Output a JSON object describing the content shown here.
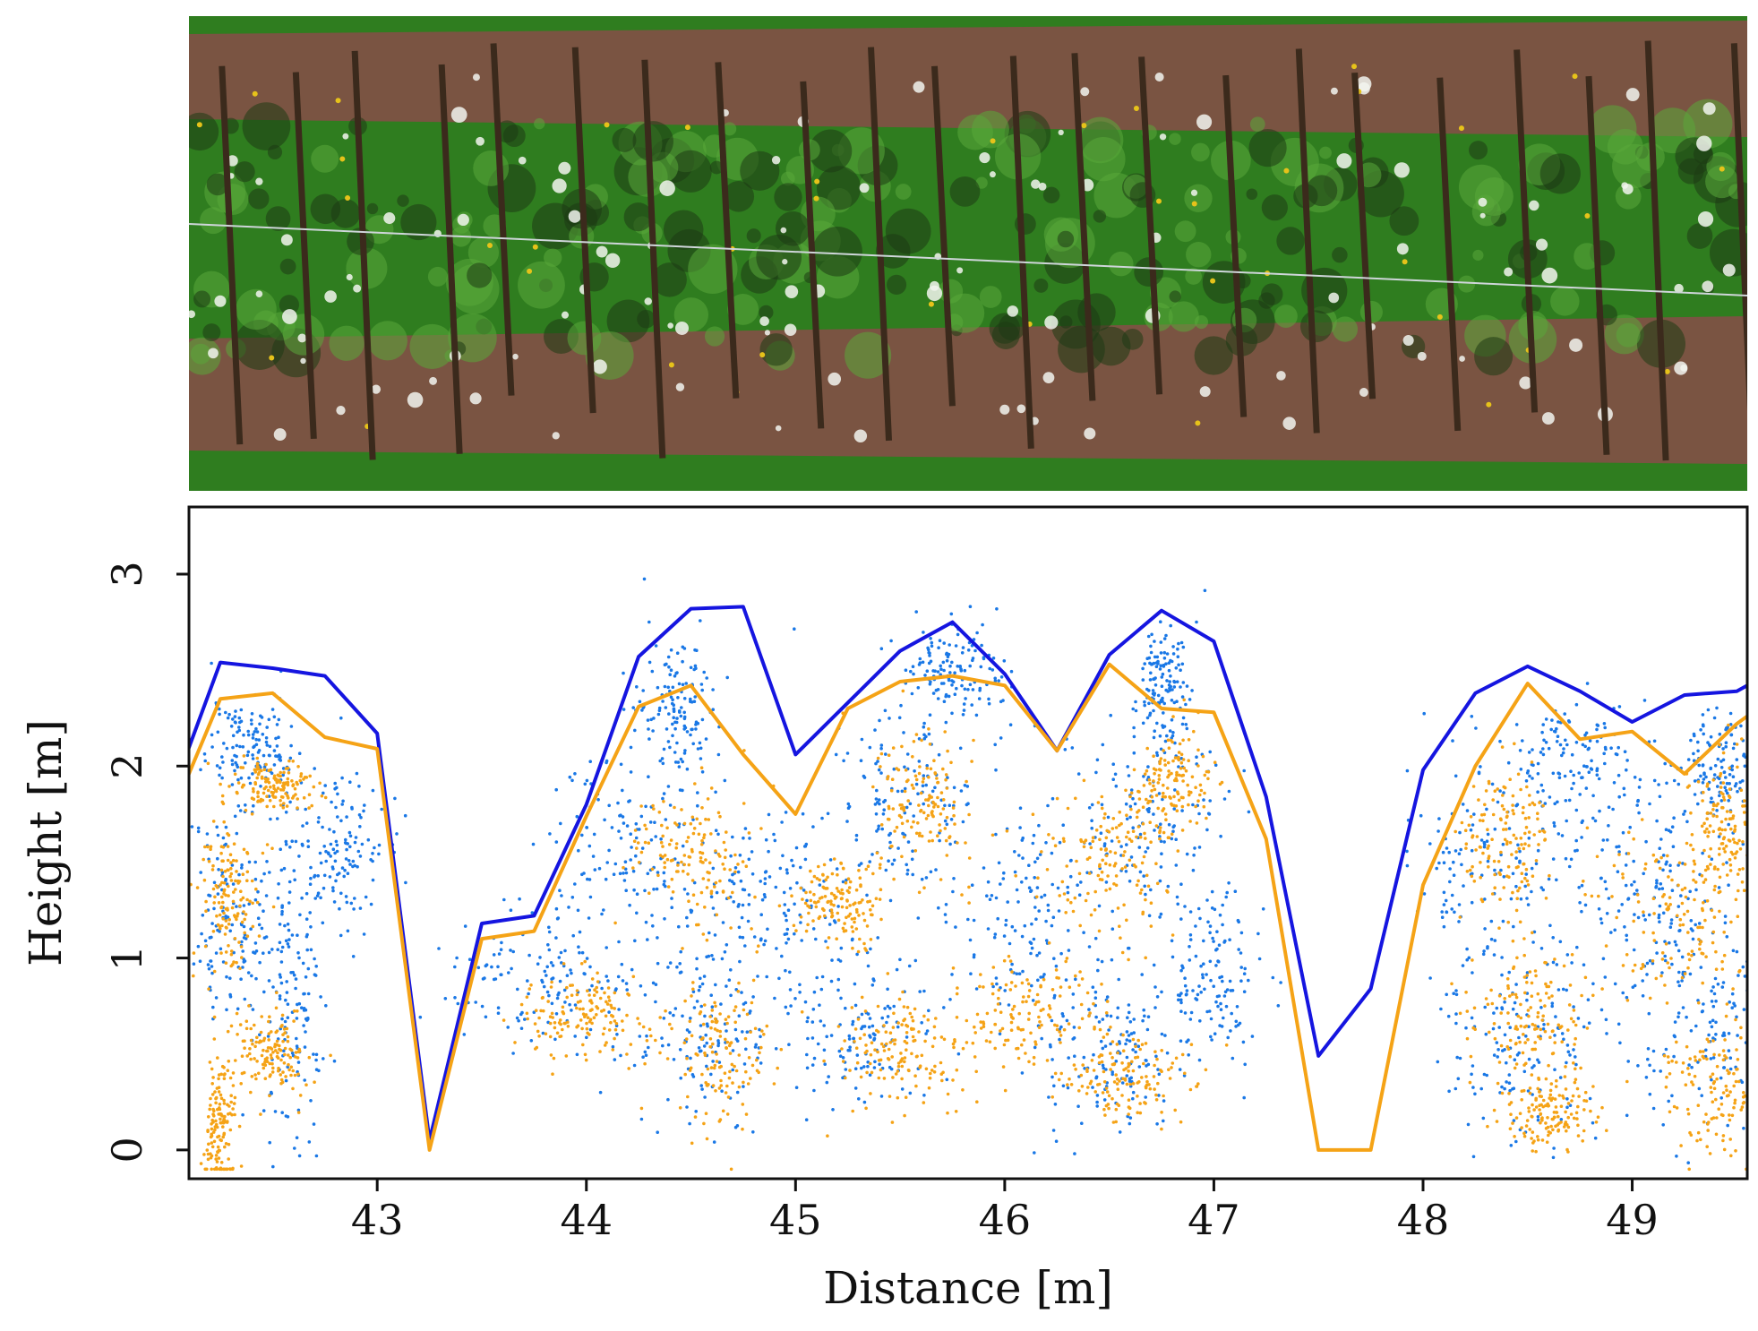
{
  "photo": {
    "subject": "orchard-row-photo",
    "colors": {
      "grass": "#2f7d1f",
      "soil": "#7a5442",
      "leaf": "#5aa83a",
      "blossom": "#f2f4ef",
      "trunk": "#3b2a1c",
      "shadow": "#1d3a14",
      "dandelion": "#e6c21a"
    }
  },
  "chart_data": {
    "type": "scatter",
    "xlabel": "Distance [m]",
    "ylabel": "Height [m]",
    "xlim": [
      42.1,
      49.55
    ],
    "ylim": [
      -0.15,
      3.35
    ],
    "xticks": [
      43,
      44,
      45,
      46,
      47,
      48,
      49
    ],
    "xtick_labels": [
      "43",
      "44",
      "45",
      "46",
      "47",
      "48",
      "49"
    ],
    "yticks": [
      0,
      1,
      2,
      3
    ],
    "ytick_labels": [
      "0",
      "1",
      "2",
      "3"
    ],
    "grid": false,
    "legend": "none",
    "series": [
      {
        "kind": "line",
        "color": "#1515e0",
        "x": [
          42.0,
          42.25,
          42.5,
          42.75,
          43.0,
          43.25,
          43.5,
          43.75,
          44.0,
          44.25,
          44.5,
          44.75,
          45.0,
          45.25,
          45.5,
          45.75,
          46.0,
          46.25,
          46.5,
          46.75,
          47.0,
          47.25,
          47.5,
          47.75,
          48.0,
          48.25,
          48.5,
          48.75,
          49.0,
          49.25,
          49.5,
          49.6
        ],
        "y": [
          1.8,
          2.54,
          2.51,
          2.47,
          2.17,
          0.05,
          1.18,
          1.22,
          1.8,
          2.57,
          2.82,
          2.83,
          2.06,
          2.33,
          2.6,
          2.75,
          2.48,
          2.08,
          2.58,
          2.81,
          2.65,
          1.84,
          0.49,
          0.84,
          1.98,
          2.38,
          2.52,
          2.39,
          2.23,
          2.37,
          2.39,
          2.45
        ]
      },
      {
        "kind": "line",
        "color": "#f5a316",
        "x": [
          42.0,
          42.25,
          42.5,
          42.75,
          43.0,
          43.25,
          43.5,
          43.75,
          44.0,
          44.25,
          44.5,
          44.75,
          45.0,
          45.25,
          45.5,
          45.75,
          46.0,
          46.25,
          46.5,
          46.75,
          47.0,
          47.25,
          47.5,
          47.75,
          48.0,
          48.25,
          48.5,
          48.75,
          49.0,
          49.25,
          49.5,
          49.6
        ],
        "y": [
          1.7,
          2.35,
          2.38,
          2.15,
          2.09,
          0.0,
          1.1,
          1.14,
          1.74,
          2.31,
          2.42,
          2.06,
          1.75,
          2.3,
          2.44,
          2.47,
          2.42,
          2.08,
          2.53,
          2.3,
          2.28,
          1.62,
          0.0,
          0.0,
          1.38,
          2.0,
          2.43,
          2.14,
          2.18,
          1.96,
          2.22,
          2.3
        ]
      },
      {
        "kind": "points",
        "color": "#1a78e6",
        "clusters": [
          [
            42.3,
            1.2,
            0.18,
            0.5
          ],
          [
            42.6,
            0.8,
            0.15,
            0.6
          ],
          [
            42.4,
            2.1,
            0.18,
            0.25
          ],
          [
            42.8,
            1.6,
            0.2,
            0.35
          ],
          [
            43.8,
            0.9,
            0.35,
            0.3
          ],
          [
            44.2,
            1.6,
            0.3,
            0.4
          ],
          [
            44.45,
            2.3,
            0.18,
            0.3
          ],
          [
            44.55,
            0.6,
            0.3,
            0.4
          ],
          [
            44.9,
            1.3,
            0.3,
            0.4
          ],
          [
            45.3,
            0.6,
            0.3,
            0.35
          ],
          [
            45.55,
            1.8,
            0.3,
            0.45
          ],
          [
            45.75,
            2.5,
            0.2,
            0.2
          ],
          [
            46.1,
            1.2,
            0.35,
            0.5
          ],
          [
            46.5,
            0.5,
            0.3,
            0.35
          ],
          [
            46.7,
            1.7,
            0.3,
            0.5
          ],
          [
            46.75,
            2.4,
            0.12,
            0.3
          ],
          [
            47.0,
            0.9,
            0.25,
            0.4
          ],
          [
            48.3,
            1.4,
            0.35,
            0.5
          ],
          [
            48.5,
            0.6,
            0.3,
            0.4
          ],
          [
            48.7,
            2.0,
            0.3,
            0.3
          ],
          [
            49.1,
            1.3,
            0.3,
            0.5
          ],
          [
            49.35,
            0.7,
            0.25,
            0.5
          ],
          [
            49.4,
            2.0,
            0.2,
            0.25
          ]
        ]
      },
      {
        "kind": "points",
        "color": "#f5a316",
        "clusters": [
          [
            42.3,
            1.3,
            0.12,
            0.35
          ],
          [
            42.5,
            0.5,
            0.15,
            0.2
          ],
          [
            42.5,
            1.9,
            0.15,
            0.12
          ],
          [
            42.25,
            0.1,
            0.06,
            0.3
          ],
          [
            44.0,
            0.7,
            0.25,
            0.2
          ],
          [
            44.5,
            1.5,
            0.25,
            0.3
          ],
          [
            44.6,
            0.5,
            0.25,
            0.3
          ],
          [
            45.2,
            1.3,
            0.2,
            0.2
          ],
          [
            45.6,
            1.8,
            0.2,
            0.3
          ],
          [
            45.5,
            0.5,
            0.25,
            0.25
          ],
          [
            46.1,
            0.7,
            0.3,
            0.25
          ],
          [
            46.5,
            1.5,
            0.25,
            0.35
          ],
          [
            46.8,
            1.9,
            0.15,
            0.25
          ],
          [
            46.6,
            0.4,
            0.25,
            0.2
          ],
          [
            48.4,
            1.6,
            0.2,
            0.3
          ],
          [
            48.5,
            0.7,
            0.25,
            0.3
          ],
          [
            48.6,
            0.2,
            0.2,
            0.15
          ],
          [
            49.2,
            1.2,
            0.3,
            0.35
          ],
          [
            49.4,
            0.3,
            0.2,
            0.3
          ],
          [
            49.45,
            1.7,
            0.15,
            0.3
          ]
        ]
      }
    ]
  }
}
